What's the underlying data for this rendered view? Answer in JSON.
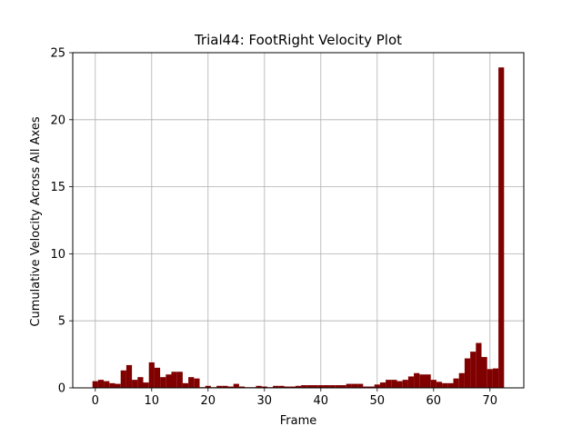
{
  "chart_data": {
    "type": "bar",
    "title": "Trial44: FootRight Velocity Plot",
    "xlabel": "Frame",
    "ylabel": "Cumulative Velocity Across All Axes",
    "xlim": [
      -4,
      76
    ],
    "ylim": [
      0,
      25
    ],
    "xticks": [
      0,
      10,
      20,
      30,
      40,
      50,
      60,
      70
    ],
    "yticks": [
      0,
      5,
      10,
      15,
      20,
      25
    ],
    "grid": true,
    "bar_color": "#800000",
    "x": [
      0,
      1,
      2,
      3,
      4,
      5,
      6,
      7,
      8,
      9,
      10,
      11,
      12,
      13,
      14,
      15,
      16,
      17,
      18,
      19,
      20,
      21,
      22,
      23,
      24,
      25,
      26,
      27,
      28,
      29,
      30,
      31,
      32,
      33,
      34,
      35,
      36,
      37,
      38,
      39,
      40,
      41,
      42,
      43,
      44,
      45,
      46,
      47,
      48,
      49,
      50,
      51,
      52,
      53,
      54,
      55,
      56,
      57,
      58,
      59,
      60,
      61,
      62,
      63,
      64,
      65,
      66,
      67,
      68,
      69,
      70,
      71,
      72
    ],
    "values": [
      0.5,
      0.6,
      0.5,
      0.35,
      0.3,
      1.3,
      1.7,
      0.6,
      0.8,
      0.4,
      1.9,
      1.5,
      0.8,
      1.0,
      1.2,
      1.2,
      0.35,
      0.8,
      0.7,
      0.05,
      0.15,
      0.05,
      0.15,
      0.15,
      0.1,
      0.3,
      0.1,
      0.05,
      0.05,
      0.15,
      0.1,
      0.05,
      0.15,
      0.15,
      0.1,
      0.1,
      0.15,
      0.2,
      0.2,
      0.2,
      0.2,
      0.2,
      0.2,
      0.2,
      0.2,
      0.3,
      0.3,
      0.3,
      0.1,
      0.1,
      0.25,
      0.4,
      0.6,
      0.6,
      0.5,
      0.6,
      0.85,
      1.1,
      1.0,
      1.0,
      0.6,
      0.45,
      0.35,
      0.35,
      0.7,
      1.1,
      2.2,
      2.7,
      3.35,
      2.3,
      1.4,
      1.45,
      23.9
    ]
  }
}
